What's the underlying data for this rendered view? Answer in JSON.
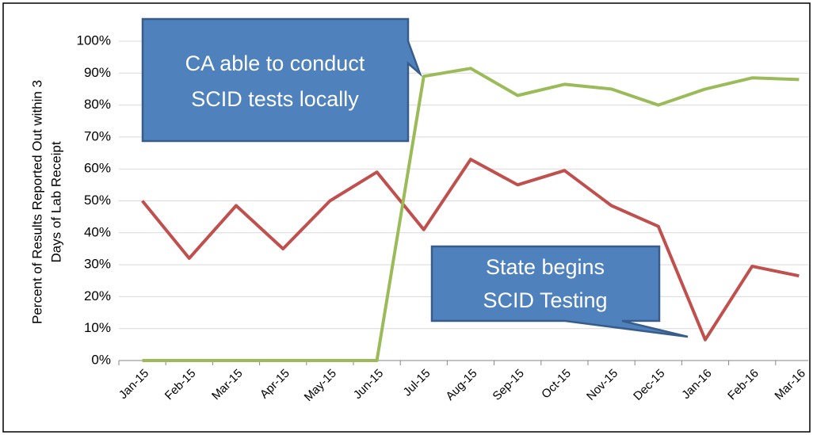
{
  "chart_data": {
    "type": "line",
    "y_label": [
      "Percent of Results Reported Out within 3",
      "Days of Lab Receipt"
    ],
    "categories": [
      "Jan-15",
      "Feb-15",
      "Mar-15",
      "Apr-15",
      "May-15",
      "Jun-15",
      "Jul-15",
      "Aug-15",
      "Sep-15",
      "Oct-15",
      "Nov-15",
      "Dec-15",
      "Jan-16",
      "Feb-16",
      "Mar-16"
    ],
    "series": [
      {
        "color": "#c0504d",
        "values": [
          50,
          32,
          48.5,
          35,
          50,
          59,
          41,
          63,
          55,
          59.5,
          48.5,
          42,
          6.5,
          29.5,
          26.5
        ]
      },
      {
        "color": "#9bbb59",
        "values": [
          0,
          0,
          0,
          0,
          0,
          0,
          89,
          91.5,
          83,
          86.5,
          85,
          80,
          85,
          88.5,
          88
        ]
      }
    ],
    "ylim": [
      0,
      100
    ],
    "yticks": [
      {
        "value": 0,
        "label": "0%"
      },
      {
        "value": 10,
        "label": "10%"
      },
      {
        "value": 20,
        "label": "20%"
      },
      {
        "value": 30,
        "label": "30%"
      },
      {
        "value": 40,
        "label": "40%"
      },
      {
        "value": 50,
        "label": "50%"
      },
      {
        "value": 60,
        "label": "60%"
      },
      {
        "value": 70,
        "label": "70%"
      },
      {
        "value": 80,
        "label": "80%"
      },
      {
        "value": 90,
        "label": "90%"
      },
      {
        "value": 100,
        "label": "100%"
      }
    ],
    "grid": true,
    "annotations": [
      {
        "lines": [
          "CA able to conduct",
          "SCID tests locally"
        ]
      },
      {
        "lines": [
          "State begins",
          "SCID Testing"
        ]
      }
    ]
  }
}
